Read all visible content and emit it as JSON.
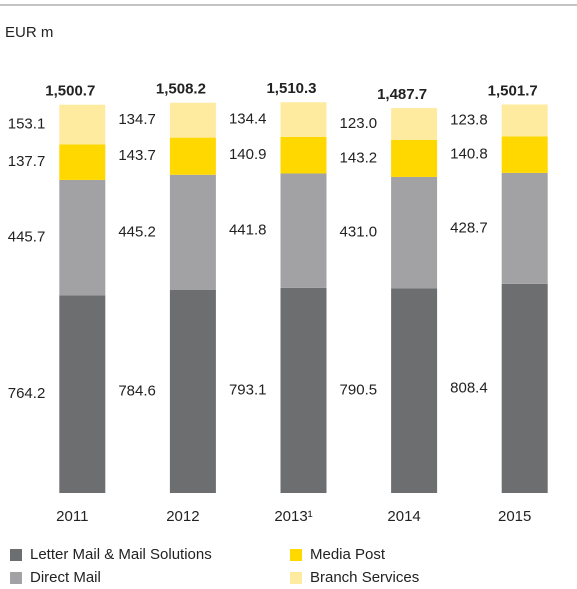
{
  "chart_data": {
    "type": "stacked_bar",
    "unit_label": "EUR m",
    "categories": [
      "2011",
      "2012",
      "2013¹",
      "2014",
      "2015"
    ],
    "series": [
      {
        "name": "Letter Mail & Mail Solutions",
        "color": "#6d6e70",
        "values": [
          764.2,
          784.6,
          793.1,
          790.5,
          808.4
        ]
      },
      {
        "name": "Direct Mail",
        "color": "#a2a2a5",
        "values": [
          445.7,
          445.2,
          441.8,
          431.0,
          428.7
        ],
        "value_labels": [
          "445.7",
          "445.2",
          "441.8",
          "431.0",
          "428.7"
        ]
      },
      {
        "name": "Media Post",
        "color": "#ffd800",
        "values": [
          137.7,
          143.7,
          140.9,
          143.2,
          140.8
        ]
      },
      {
        "name": "Branch Services",
        "color": "#ffeba0",
        "values": [
          153.1,
          134.7,
          134.4,
          123.0,
          123.8
        ],
        "value_labels": [
          "153.1",
          "134.7",
          "134.4",
          "123.0",
          "123.8"
        ]
      }
    ],
    "totals": {
      "values": [
        1500.7,
        1508.2,
        1510.3,
        1487.7,
        1501.7
      ],
      "value_labels": [
        "1,500.7",
        "1,508.2",
        "1,510.3",
        "1,487.7",
        "1,501.7"
      ]
    },
    "ylim": [
      0,
      1600
    ]
  }
}
